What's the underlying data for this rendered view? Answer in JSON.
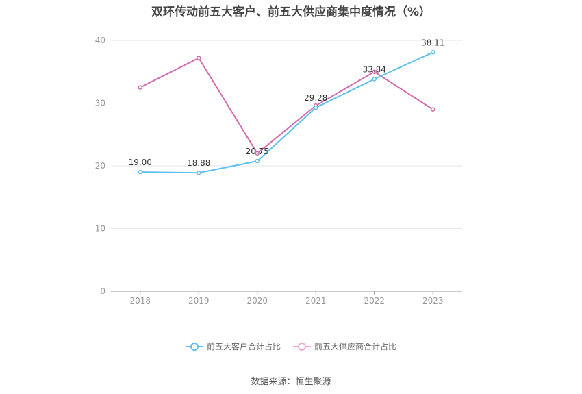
{
  "chart_data": {
    "type": "line",
    "title": "双环传动前五大客户、前五大供应商集中度情况（%）",
    "categories": [
      "2018",
      "2019",
      "2020",
      "2021",
      "2022",
      "2023"
    ],
    "ylim": [
      0,
      40
    ],
    "yticks": [
      0,
      10,
      20,
      30,
      40
    ],
    "grid": true,
    "legend_position": "bottom",
    "series": [
      {
        "name": "前五大客户合计占比",
        "color": "#5bc0eb",
        "values": [
          19.0,
          18.88,
          20.75,
          29.28,
          33.84,
          38.11
        ],
        "data_labels": [
          "19.00",
          "18.88",
          "20.75",
          "29.28",
          "33.84",
          "38.11"
        ]
      },
      {
        "name": "前五大供应商合计占比",
        "color": "#d46aad",
        "values": [
          32.5,
          37.2,
          22.0,
          29.6,
          35.0,
          29.0
        ]
      }
    ]
  },
  "footer": {
    "source": "数据来源：恒生聚源"
  }
}
